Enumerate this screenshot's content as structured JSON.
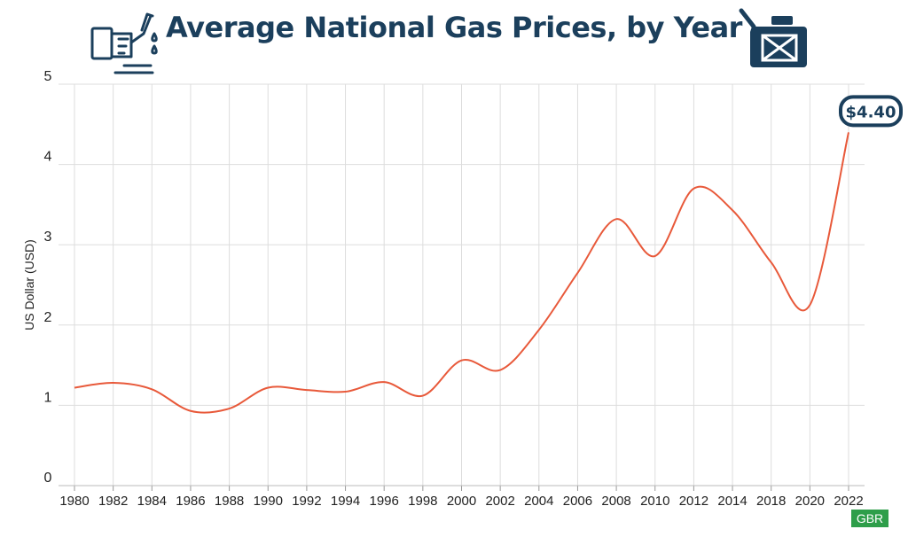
{
  "header": {
    "title": "Average National Gas Prices, by Year",
    "left_icon": "gas-pump-icon",
    "right_icon": "jerrycan-icon"
  },
  "badge": {
    "text": "GBR"
  },
  "colors": {
    "title": "#1b3f5c",
    "line": "#e8593a",
    "grid": "#dddddd",
    "badge": "#2e9e4a"
  },
  "chart_data": {
    "type": "line",
    "title": "Average National Gas Prices, by Year",
    "ylabel": "US Dollar (USD)",
    "xlabel": "",
    "ylim": [
      0,
      5
    ],
    "yticks": [
      "0",
      "1",
      "2",
      "3",
      "4",
      "5"
    ],
    "categories": [
      "1980",
      "1982",
      "1984",
      "1986",
      "1988",
      "1990",
      "1992",
      "1994",
      "1996",
      "1998",
      "2000",
      "2002",
      "2004",
      "2006",
      "2008",
      "2010",
      "2012",
      "2014",
      "2018",
      "2020",
      "2022"
    ],
    "values": [
      1.22,
      1.28,
      1.2,
      0.93,
      0.96,
      1.22,
      1.19,
      1.17,
      1.29,
      1.12,
      1.56,
      1.44,
      1.94,
      2.65,
      3.32,
      2.86,
      3.7,
      3.43,
      2.78,
      2.25,
      4.4
    ],
    "grid": true,
    "annotation": {
      "text": "$4.40",
      "target": "2022"
    }
  }
}
